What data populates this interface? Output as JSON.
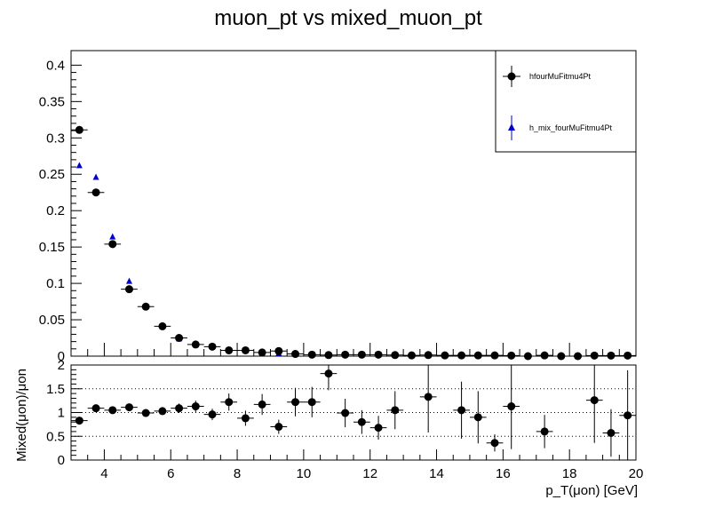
{
  "chart_data": [
    {
      "type": "scatter",
      "title": "muon_pt vs mixed_muon_pt",
      "xlim": [
        3,
        20
      ],
      "ylim": [
        0,
        0.42
      ],
      "y_ticks": [
        0,
        0.05,
        0.1,
        0.15,
        0.2,
        0.25,
        0.3,
        0.35,
        0.4
      ],
      "y_tick_labels": [
        "0",
        "0.05",
        "0.1",
        "0.15",
        "0.2",
        "0.25",
        "0.3",
        "0.35",
        "0.4"
      ],
      "legend_position": "top-right",
      "series": [
        {
          "name": "hfourMuFitmu4Pt",
          "marker": "circle",
          "color": "#000000",
          "x": [
            3.25,
            3.75,
            4.25,
            4.75,
            5.25,
            5.75,
            6.25,
            6.75,
            7.25,
            7.75,
            8.25,
            8.75,
            9.25,
            9.75,
            10.25,
            10.75,
            11.25,
            11.75,
            12.25,
            12.75,
            13.25,
            13.75,
            14.25,
            14.75,
            15.25,
            15.75,
            16.25,
            16.75,
            17.25,
            17.75,
            18.25,
            18.75,
            19.25,
            19.75
          ],
          "values": [
            0.311,
            0.225,
            0.154,
            0.092,
            0.068,
            0.041,
            0.025,
            0.016,
            0.013,
            0.008,
            0.008,
            0.005,
            0.007,
            0.003,
            0.002,
            0.0015,
            0.002,
            0.002,
            0.002,
            0.0015,
            0.001,
            0.0015,
            0.001,
            0.001,
            0.001,
            0.001,
            0.0008,
            0.0,
            0.001,
            0.0,
            0.0,
            0.0008,
            0.0008,
            0.0008
          ]
        },
        {
          "name": "h_mix_fourMuFitmu4Pt",
          "marker": "triangle",
          "color": "#0000cc",
          "x": [
            3.25,
            3.75,
            4.25,
            4.75,
            5.25,
            5.75,
            6.25,
            6.75,
            7.25,
            7.75,
            8.25,
            8.75,
            9.25,
            9.75,
            10.25,
            10.75,
            11.25,
            11.75,
            12.25,
            12.75,
            13.25,
            13.75,
            14.25,
            14.75,
            15.25,
            15.75,
            16.25,
            16.75,
            17.25,
            17.75,
            18.25,
            18.75,
            19.25,
            19.75
          ],
          "values": [
            0.262,
            0.246,
            0.164,
            0.103,
            0.068,
            0.041,
            0.024,
            0.016,
            0.014,
            0.008,
            0.008,
            0.005,
            0.004,
            0.003,
            0.002,
            0.001,
            0.002,
            0.002,
            0.002,
            0.0015,
            0.001,
            0.001,
            0.001,
            0.001,
            0.001,
            0.001,
            0.0006,
            0.0005,
            0.001,
            0.0005,
            0.0005,
            0.0006,
            0.0008,
            0.0008
          ]
        }
      ]
    },
    {
      "type": "scatter",
      "xlabel": "p_T(μon) [GeV]",
      "ylabel": "Mixed(μon)/μon",
      "xlim": [
        3,
        20
      ],
      "ylim": [
        0,
        2
      ],
      "x_ticks": [
        4,
        6,
        8,
        10,
        12,
        14,
        16,
        18,
        20
      ],
      "x_tick_labels": [
        "4",
        "6",
        "8",
        "10",
        "12",
        "14",
        "16",
        "18",
        "20"
      ],
      "y_ticks": [
        0,
        0.5,
        1,
        1.5,
        2
      ],
      "y_tick_labels": [
        "0",
        "0.5",
        "1",
        "1.5",
        "2"
      ],
      "grid": "dotted horizontal at 0.5, 1, 1.5",
      "series": [
        {
          "marker": "circle",
          "color": "#000000",
          "x": [
            3.25,
            3.75,
            4.25,
            4.75,
            5.25,
            5.75,
            6.25,
            6.75,
            7.25,
            7.75,
            8.25,
            8.75,
            9.25,
            9.75,
            10.25,
            10.75,
            11.25,
            11.75,
            12.25,
            12.75,
            13.75,
            14.75,
            15.25,
            15.75,
            16.25,
            17.25,
            18.75,
            19.25,
            19.75
          ],
          "values": [
            0.83,
            1.09,
            1.05,
            1.11,
            0.99,
            1.03,
            1.09,
            1.13,
            0.96,
            1.22,
            0.88,
            1.17,
            0.7,
            1.22,
            1.22,
            1.82,
            0.99,
            0.8,
            0.68,
            1.05,
            1.33,
            1.05,
            0.9,
            0.36,
            1.13,
            0.6,
            1.26,
            0.57,
            0.94
          ],
          "errors": [
            0.05,
            0.06,
            0.06,
            0.07,
            0.07,
            0.08,
            0.1,
            0.12,
            0.12,
            0.18,
            0.16,
            0.22,
            0.15,
            0.3,
            0.32,
            0.35,
            0.3,
            0.25,
            0.25,
            0.4,
            0.75,
            0.6,
            0.55,
            0.18,
            0.9,
            0.35,
            0.9,
            0.5,
            0.95
          ]
        }
      ]
    }
  ]
}
